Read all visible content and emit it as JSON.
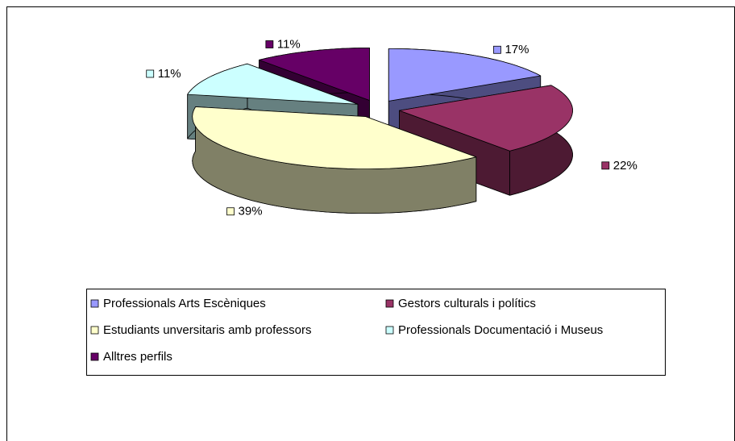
{
  "chart_data": {
    "type": "pie",
    "categories": [
      "Professionals Arts Escèniques",
      "Gestors culturals i polítics",
      "Estudiants unversitaris amb professors",
      "Professionals Documentació i Museus",
      "Alltres perfils"
    ],
    "values": [
      17,
      22,
      39,
      11,
      11
    ],
    "value_labels": [
      "17%",
      "22%",
      "39%",
      "11%",
      "11%"
    ],
    "colors": [
      "#9999ff",
      "#993366",
      "#ffffcc",
      "#ccffff",
      "#660066"
    ],
    "legend": "bottom"
  }
}
